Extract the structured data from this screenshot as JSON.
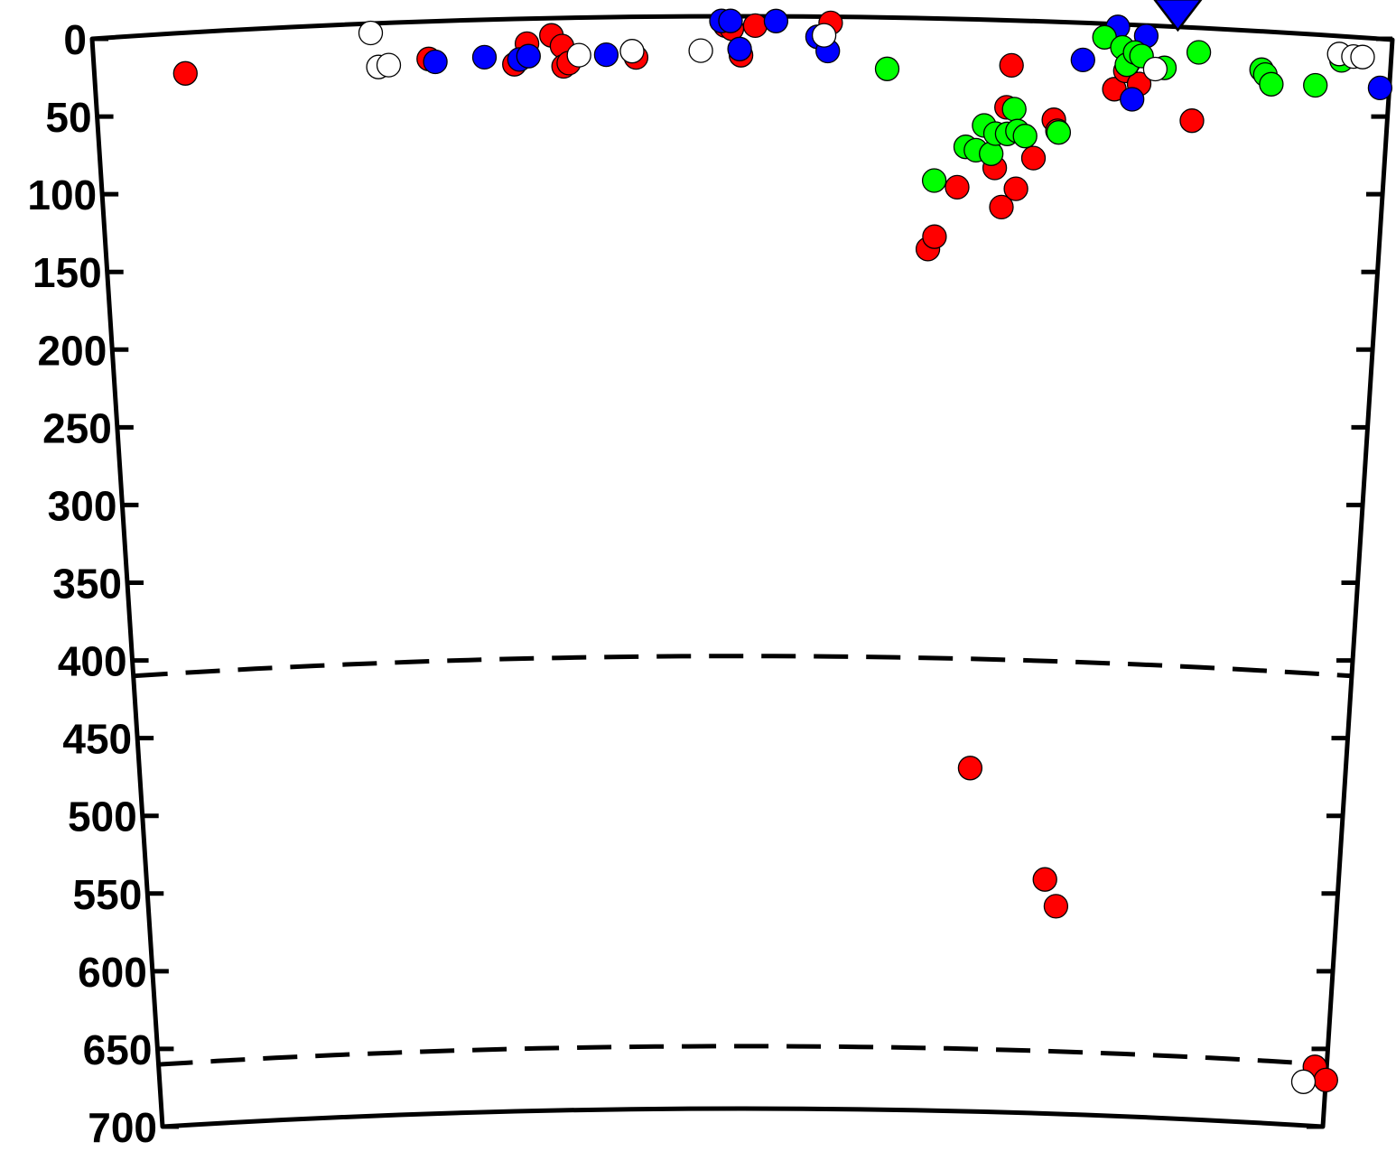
{
  "chart_data": {
    "type": "scatter",
    "title": "",
    "xlabel": "",
    "ylabel": "",
    "ylim": [
      0,
      700
    ],
    "y_inverted": true,
    "y_ticks": [
      "0",
      "50",
      "100",
      "150",
      "200",
      "250",
      "300",
      "350",
      "400",
      "450",
      "500",
      "550",
      "600",
      "650",
      "700"
    ],
    "discontinuities": [
      410,
      660
    ],
    "xlim": [
      0,
      100
    ],
    "marker": {
      "symbol": "inverted-triangle",
      "color": "#0000ff",
      "x": 83.5,
      "y": 0
    },
    "colors": {
      "red": "#ff0000",
      "blue": "#0000ff",
      "green": "#00ff00",
      "open": "#ffffff"
    },
    "series": [
      {
        "color": "red",
        "points": [
          [
            7.0,
            26
          ],
          [
            25.8,
            24
          ],
          [
            32.4,
            29
          ],
          [
            33.4,
            16
          ],
          [
            35.3,
            11
          ],
          [
            36.1,
            18
          ],
          [
            36.2,
            31
          ],
          [
            36.6,
            29
          ],
          [
            41.8,
            26
          ],
          [
            48.7,
            6
          ],
          [
            49.2,
            8
          ],
          [
            49.9,
            25
          ],
          [
            51.0,
            6
          ],
          [
            56.8,
            4
          ],
          [
            64.6,
            148
          ],
          [
            65.1,
            140
          ],
          [
            66.8,
            108
          ],
          [
            68.9,
            480
          ],
          [
            69.7,
            95
          ],
          [
            70.3,
            120
          ],
          [
            70.5,
            56
          ],
          [
            70.8,
            29
          ],
          [
            71.4,
            108
          ],
          [
            72.7,
            88
          ],
          [
            74.2,
            63
          ],
          [
            74.5,
            70
          ],
          [
            75.4,
            550
          ],
          [
            76.4,
            567
          ],
          [
            78.8,
            42
          ],
          [
            79.6,
            30
          ],
          [
            79.8,
            25
          ],
          [
            80.7,
            38
          ],
          [
            84.9,
            60
          ],
          [
            99.0,
            662
          ],
          [
            100.0,
            670
          ]
        ]
      },
      {
        "color": "blue",
        "points": [
          [
            26.3,
            26
          ],
          [
            30.1,
            24
          ],
          [
            32.8,
            26
          ],
          [
            33.5,
            24
          ],
          [
            39.5,
            24
          ],
          [
            48.4,
            3
          ],
          [
            49.1,
            3
          ],
          [
            49.8,
            21
          ],
          [
            52.6,
            3
          ],
          [
            55.8,
            13
          ],
          [
            56.6,
            22
          ],
          [
            76.3,
            24
          ],
          [
            78.9,
            2
          ],
          [
            80.2,
            48
          ],
          [
            81.1,
            7
          ],
          [
            99.3,
            32
          ]
        ]
      },
      {
        "color": "green",
        "points": [
          [
            61.2,
            33
          ],
          [
            65.0,
            104
          ],
          [
            67.4,
            82
          ],
          [
            68.2,
            84
          ],
          [
            68.8,
            68
          ],
          [
            69.4,
            86
          ],
          [
            69.7,
            73
          ],
          [
            70.6,
            73
          ],
          [
            71.1,
            57
          ],
          [
            71.4,
            71
          ],
          [
            72.0,
            74
          ],
          [
            74.6,
            71
          ],
          [
            77.9,
            9
          ],
          [
            79.3,
            15
          ],
          [
            79.7,
            26
          ],
          [
            80.3,
            18
          ],
          [
            80.8,
            20
          ],
          [
            82.6,
            27
          ],
          [
            85.2,
            16
          ],
          [
            90.1,
            25
          ],
          [
            90.4,
            28
          ],
          [
            90.9,
            34
          ],
          [
            94.3,
            33
          ],
          [
            96.2,
            16
          ]
        ]
      },
      {
        "color": "open",
        "points": [
          [
            21.4,
            6
          ],
          [
            21.9,
            28
          ],
          [
            22.7,
            27
          ],
          [
            37.4,
            24
          ],
          [
            41.5,
            22
          ],
          [
            46.8,
            22
          ],
          [
            56.3,
            12
          ],
          [
            81.9,
            28
          ],
          [
            96.0,
            12
          ],
          [
            97.1,
            13
          ],
          [
            97.8,
            13
          ],
          [
            98.1,
            672
          ]
        ]
      }
    ]
  }
}
